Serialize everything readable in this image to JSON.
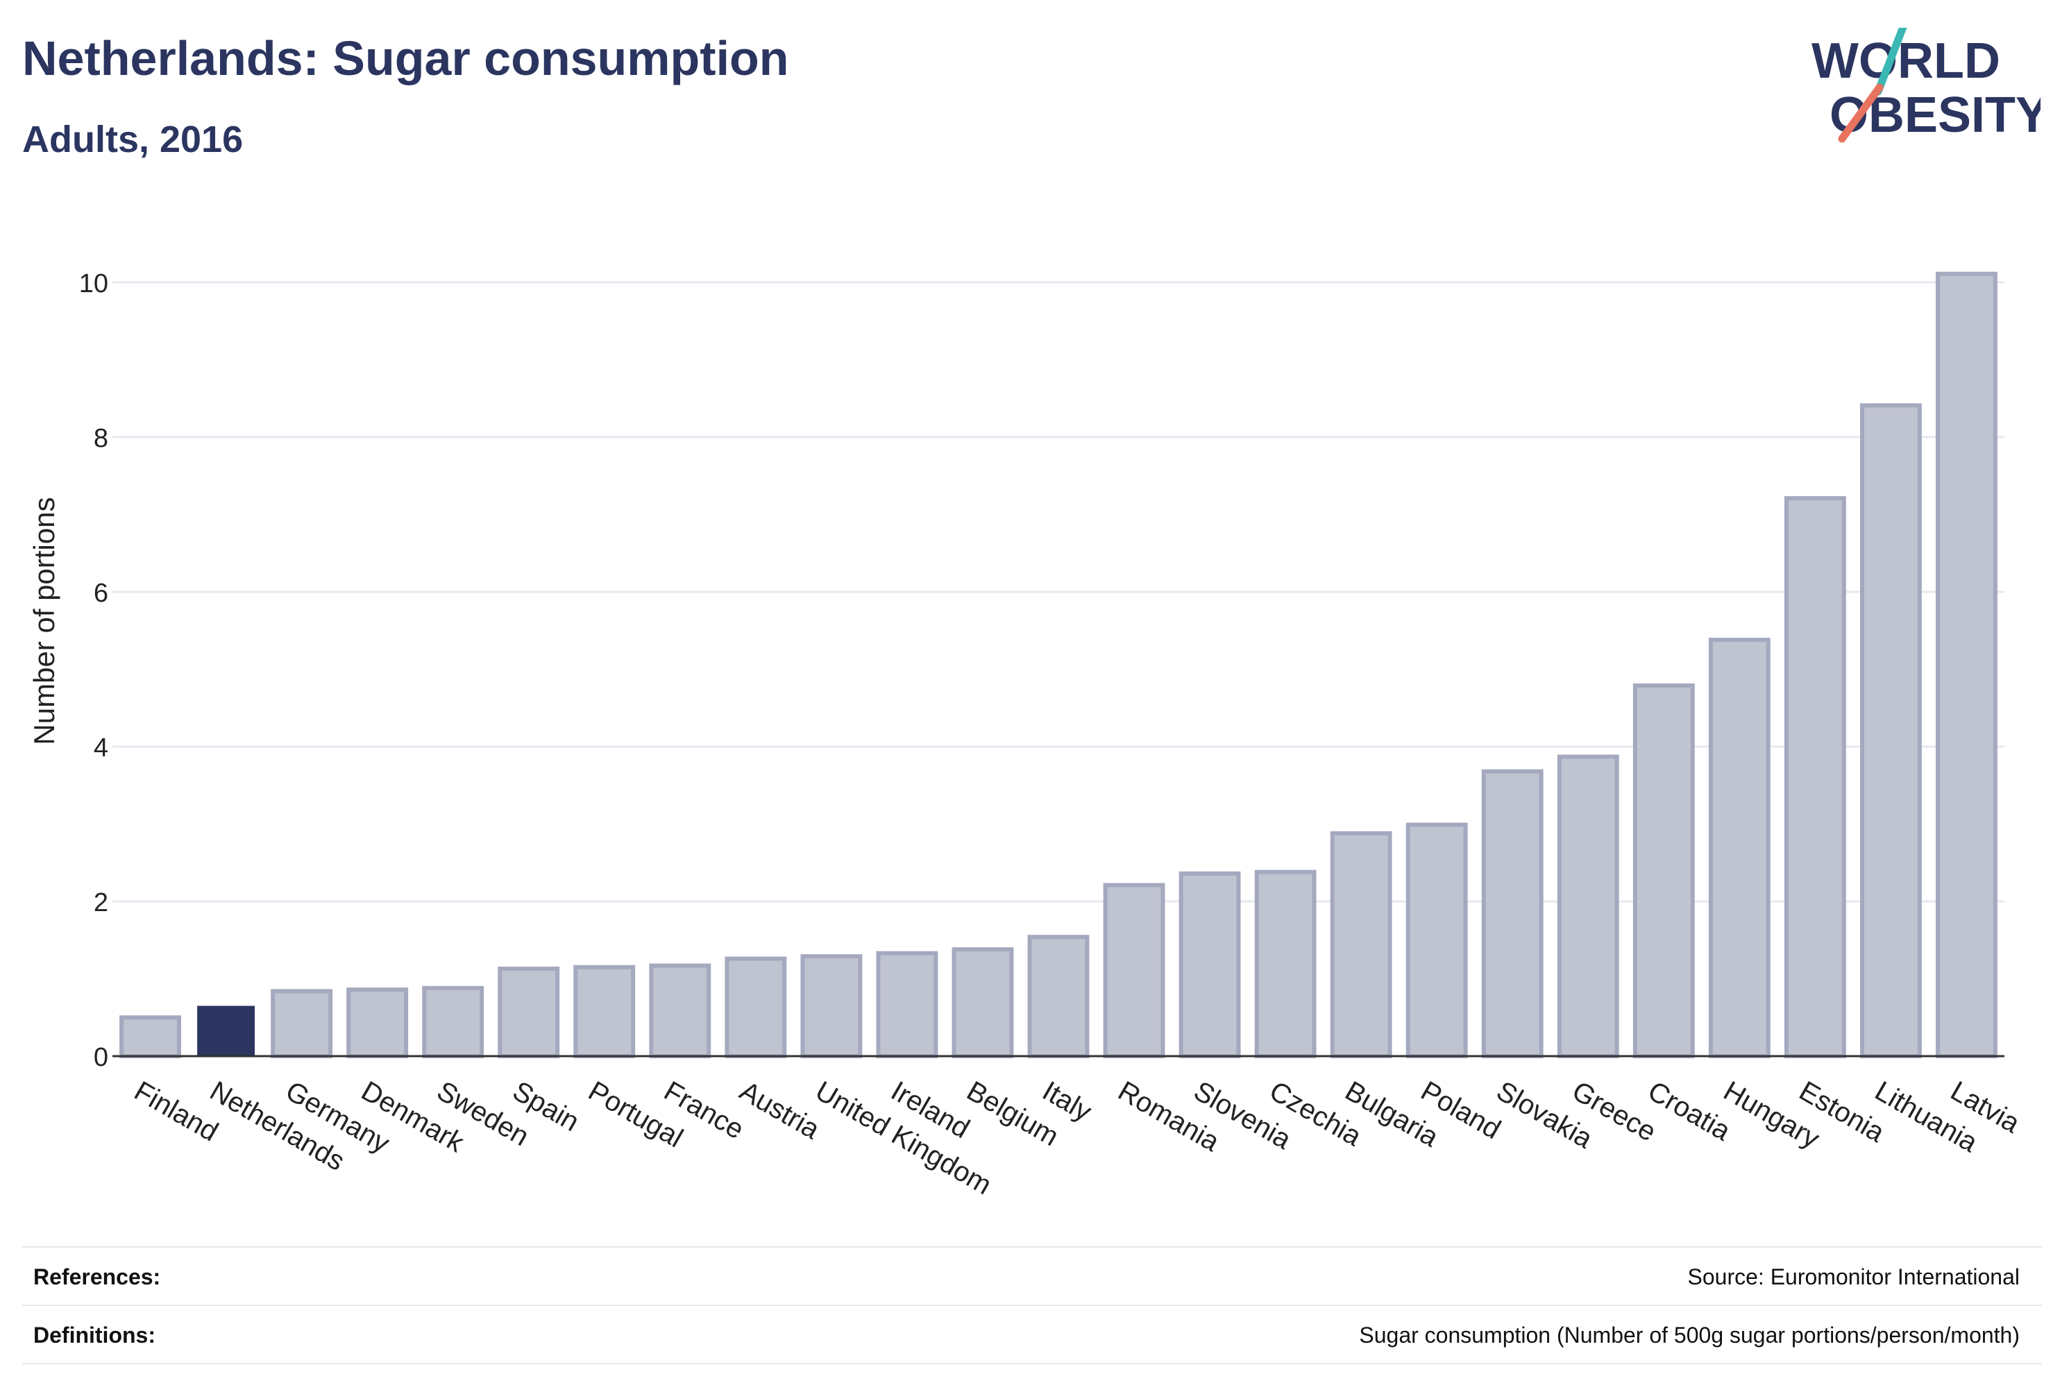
{
  "header": {
    "title": "Netherlands: Sugar consumption",
    "subtitle": "Adults, 2016"
  },
  "logo": {
    "line1": "WORLD",
    "line2": "OBESITY",
    "colors": {
      "text": "#2b3560",
      "slash_teal": "#3bb8b3",
      "slash_coral": "#e8735f"
    }
  },
  "colors": {
    "highlight_bar": "#2b3560",
    "other_bar_fill": "#c0c3d0",
    "other_bar_stroke": "#a4a9bf",
    "grid": "#e6e8ef",
    "axis": "#333333"
  },
  "chart_data": {
    "type": "bar",
    "categories": [
      "Finland",
      "Netherlands",
      "Germany",
      "Denmark",
      "Sweden",
      "Spain",
      "Portugal",
      "France",
      "Austria",
      "United Kingdom",
      "Ireland",
      "Belgium",
      "Italy",
      "Romania",
      "Slovenia",
      "Czechia",
      "Bulgaria",
      "Poland",
      "Slovakia",
      "Greece",
      "Croatia",
      "Hungary",
      "Estonia",
      "Lithuania",
      "Latvia"
    ],
    "values": [
      0.5,
      0.65,
      0.84,
      0.86,
      0.88,
      1.13,
      1.15,
      1.17,
      1.26,
      1.29,
      1.33,
      1.38,
      1.54,
      2.21,
      2.36,
      2.38,
      2.88,
      2.99,
      3.68,
      3.87,
      4.79,
      5.38,
      7.21,
      8.41,
      10.11
    ],
    "highlight": "Netherlands",
    "ylabel": "Number of portions",
    "xlabel": "",
    "ylim": [
      0,
      10.6
    ],
    "yticks": [
      0,
      2,
      4,
      6,
      8,
      10
    ],
    "grid": true
  },
  "footer": {
    "references_label": "References:",
    "references_value": "Source: Euromonitor International",
    "definitions_label": "Definitions:",
    "definitions_value": "Sugar consumption (Number of 500g sugar portions/person/month)"
  }
}
